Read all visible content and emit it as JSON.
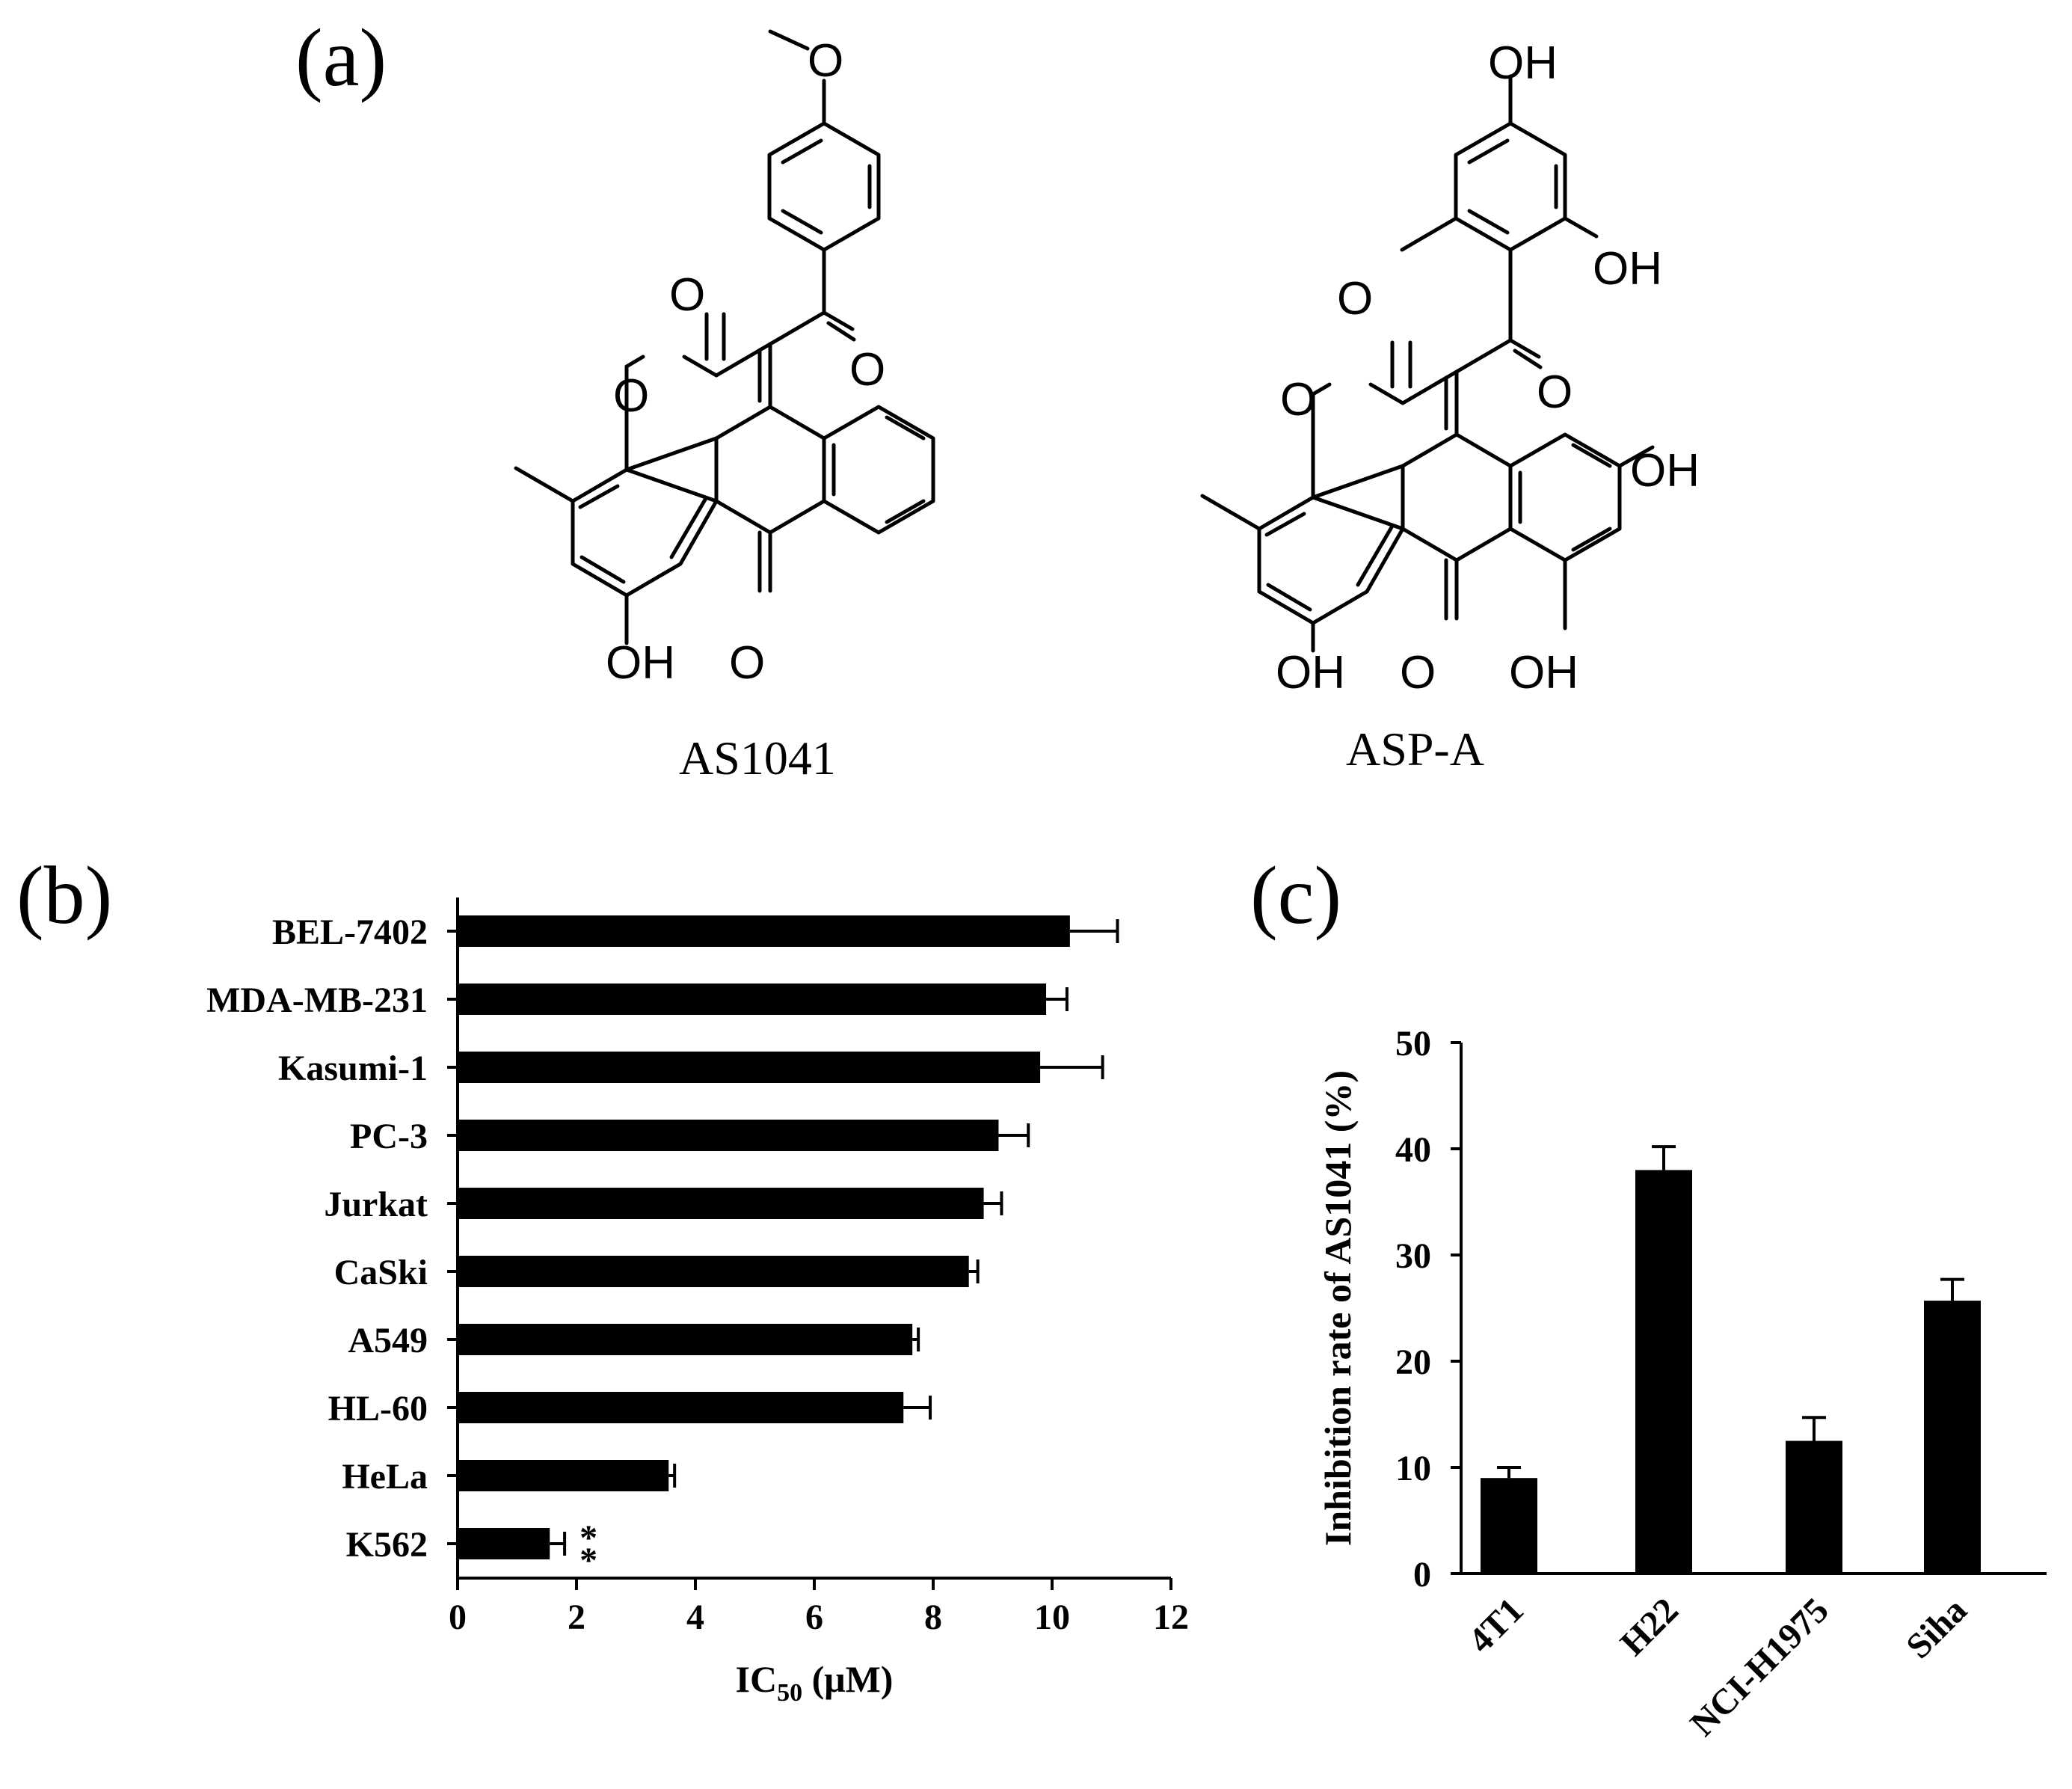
{
  "panel_a": {
    "label": "(a)",
    "compounds": [
      {
        "name": "AS1041"
      },
      {
        "name": "ASP-A"
      }
    ],
    "atoms": {
      "oxygen": "O",
      "hydroxyl": "OH"
    }
  },
  "panel_b": {
    "label": "(b)"
  },
  "panel_c": {
    "label": "(c)"
  },
  "chart_data": [
    {
      "type": "bar",
      "orientation": "horizontal",
      "categories": [
        "BEL-7402",
        "MDA-MB-231",
        "Kasumi-1",
        "PC-3",
        "Jurkat",
        "CaSki",
        "A549",
        "HL-60",
        "HeLa",
        "K562"
      ],
      "values": [
        10.3,
        9.9,
        9.8,
        9.1,
        8.85,
        8.6,
        7.65,
        7.5,
        3.55,
        1.55
      ],
      "errors": [
        0.8,
        0.35,
        1.05,
        0.5,
        0.3,
        0.15,
        0.1,
        0.45,
        0.1,
        0.25
      ],
      "annotation": {
        "category": "K562",
        "text": "**"
      },
      "xlabel": "IC50 (μM)",
      "xlabel_main": "IC",
      "xlabel_sub": "50",
      "xlabel_unit": " (μM)",
      "xlim": [
        0,
        12
      ],
      "xticks": [
        0,
        2,
        4,
        6,
        8,
        10,
        12
      ],
      "grid": false,
      "color": "#000000"
    },
    {
      "type": "bar",
      "categories": [
        "4T1",
        "H22",
        "NCI-H1975",
        "Siha"
      ],
      "values": [
        9,
        38,
        12.5,
        25.7
      ],
      "errors": [
        1.0,
        2.2,
        2.2,
        2.0
      ],
      "ylabel": "Inhibition rate of AS1041 (%)",
      "ylim": [
        0,
        50
      ],
      "yticks": [
        0,
        10,
        20,
        30,
        40,
        50
      ],
      "grid": false,
      "color": "#000000"
    }
  ]
}
